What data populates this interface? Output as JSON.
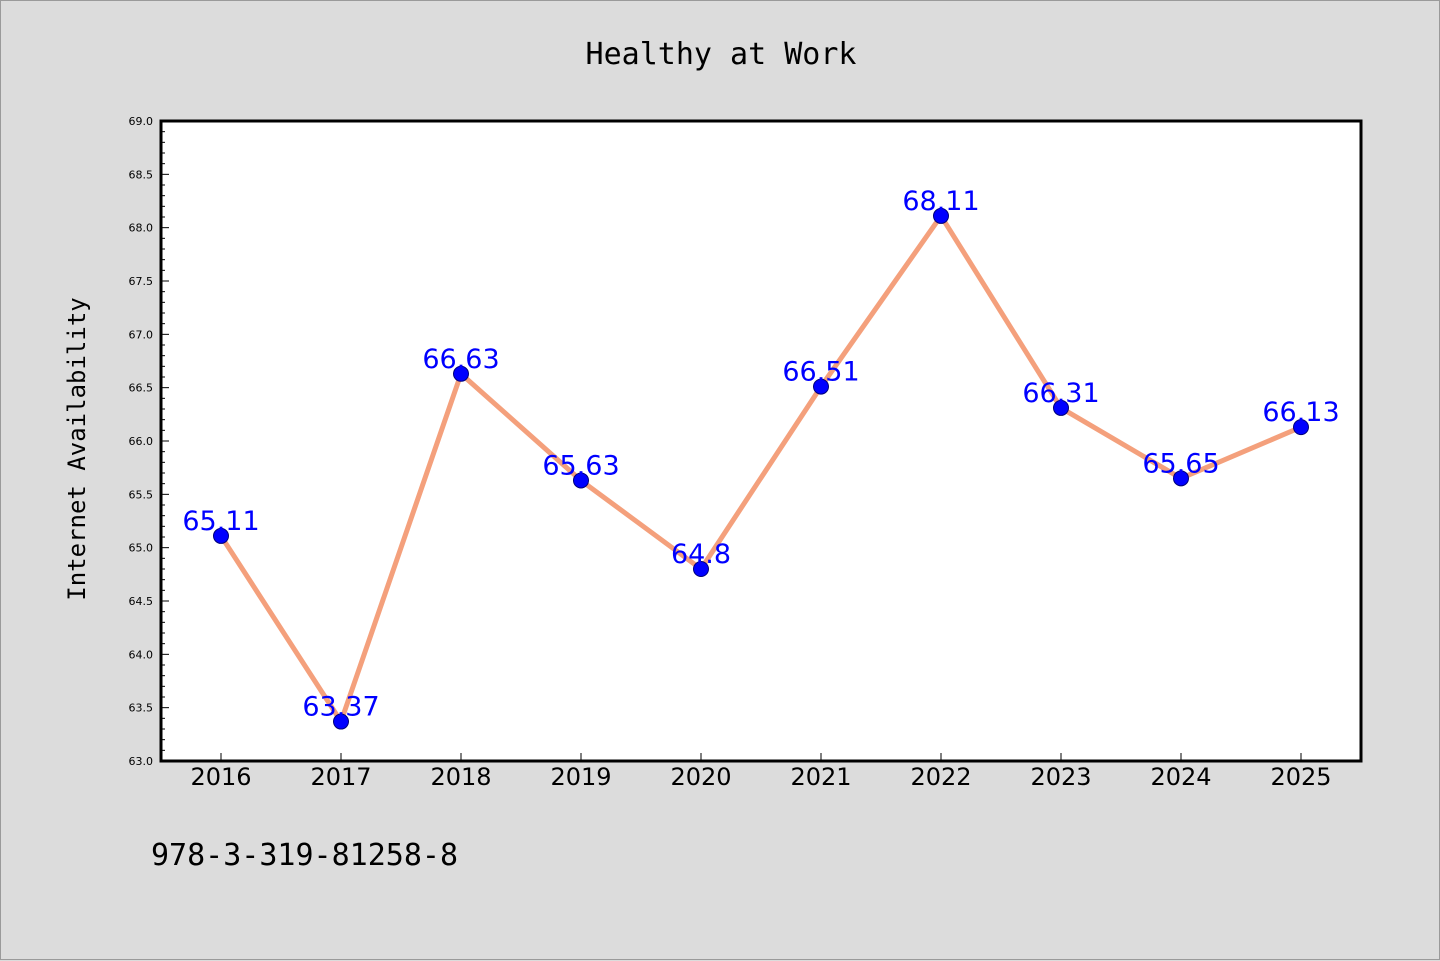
{
  "chart_data": {
    "type": "line",
    "title": "Healthy at Work",
    "xlabel": "",
    "ylabel": "Internet Availability",
    "categories": [
      "2016",
      "2017",
      "2018",
      "2019",
      "2020",
      "2021",
      "2022",
      "2023",
      "2024",
      "2025"
    ],
    "series": [
      {
        "values": [
          65.11,
          63.37,
          66.63,
          65.63,
          64.8,
          66.51,
          68.11,
          66.31,
          65.65,
          66.13
        ],
        "data_labels": [
          "65.11",
          "63.37",
          "66.63",
          "65.63",
          "64.8",
          "66.51",
          "68.11",
          "66.31",
          "65.65",
          "66.13"
        ]
      }
    ],
    "ylim": [
      63.0,
      69.0
    ],
    "yticks": [
      "63.0",
      "63.5",
      "64.0",
      "64.5",
      "65.0",
      "65.5",
      "66.0",
      "66.5",
      "67.0",
      "67.5",
      "68.0",
      "68.5",
      "69.0"
    ],
    "grid": false,
    "legend": "none",
    "colors": {
      "line": "#f4a07c",
      "marker": "#0000ff",
      "data_label": "#0000ff",
      "background": "#dcdcdc",
      "plot_background": "#ffffff"
    }
  },
  "footer": {
    "text": "978-3-319-81258-8"
  }
}
